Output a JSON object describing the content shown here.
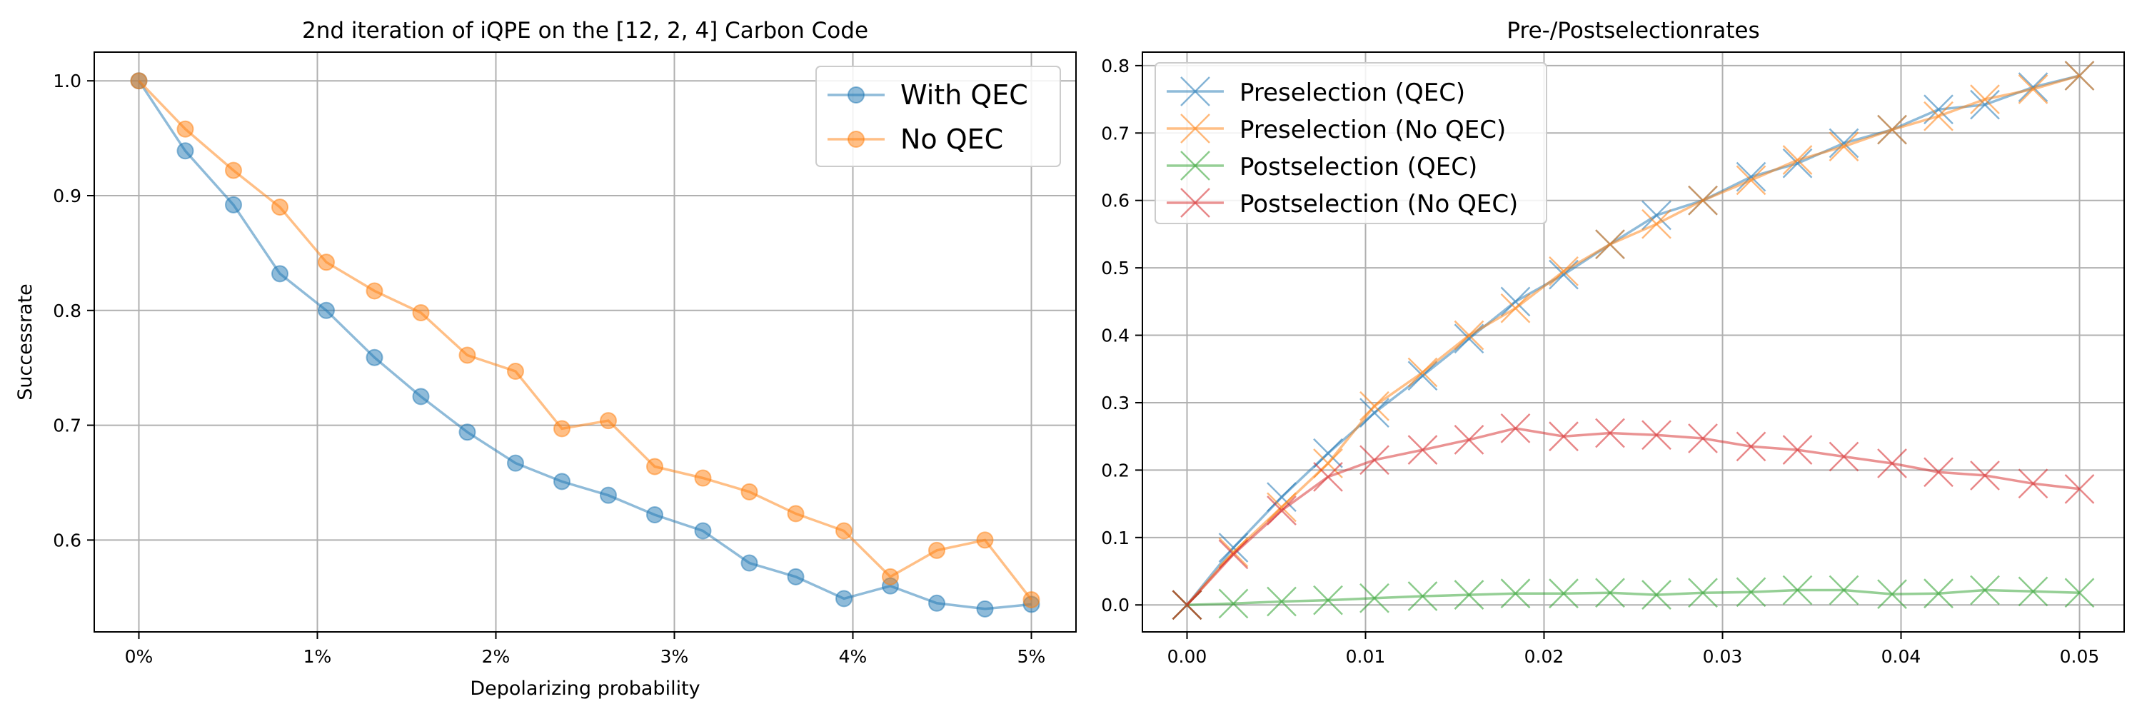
{
  "chart_data": [
    {
      "type": "line",
      "title": "2nd iteration of iQPE on the [12, 2, 4] Carbon Code",
      "xlabel": "Depolarizing probability",
      "ylabel": "Successrate",
      "xlim": [
        -0.0025,
        0.0525
      ],
      "ylim": [
        0.52,
        1.025
      ],
      "xticks": [
        0,
        0.01,
        0.02,
        0.03,
        0.04,
        0.05
      ],
      "xtick_labels": [
        "0%",
        "1%",
        "2%",
        "3%",
        "4%",
        "5%"
      ],
      "yticks": [
        0.6,
        0.7,
        0.8,
        0.9,
        1.0
      ],
      "ytick_labels": [
        "0.6",
        "0.7",
        "0.8",
        "0.9",
        "1.0"
      ],
      "grid": true,
      "legend_position": "top-right",
      "marker": "circle",
      "x": [
        0.0,
        0.0026,
        0.0053,
        0.0079,
        0.0105,
        0.0132,
        0.0158,
        0.0184,
        0.0211,
        0.0237,
        0.0263,
        0.0289,
        0.0316,
        0.0342,
        0.0368,
        0.0395,
        0.0421,
        0.0447,
        0.0474,
        0.05
      ],
      "series": [
        {
          "name": "With QEC",
          "color": "#1f77b4",
          "values": [
            1.0,
            0.939,
            0.892,
            0.832,
            0.8,
            0.759,
            0.725,
            0.694,
            0.667,
            0.651,
            0.639,
            0.622,
            0.608,
            0.58,
            0.568,
            0.549,
            0.56,
            0.545,
            0.54,
            0.544
          ]
        },
        {
          "name": "No QEC",
          "color": "#ff7f0e",
          "values": [
            1.0,
            0.958,
            0.922,
            0.89,
            0.842,
            0.817,
            0.798,
            0.761,
            0.747,
            0.697,
            0.704,
            0.664,
            0.654,
            0.642,
            0.623,
            0.608,
            0.568,
            0.591,
            0.6,
            0.548
          ]
        }
      ]
    },
    {
      "type": "line",
      "title": "Pre-/Postselectionrates",
      "xlabel": "",
      "ylabel": "",
      "xlim": [
        -0.0025,
        0.0525
      ],
      "ylim": [
        -0.04,
        0.82
      ],
      "xticks": [
        0,
        0.01,
        0.02,
        0.03,
        0.04,
        0.05
      ],
      "xtick_labels": [
        "0.00",
        "0.01",
        "0.02",
        "0.03",
        "0.04",
        "0.05"
      ],
      "yticks": [
        0,
        0.1,
        0.2,
        0.3,
        0.4,
        0.5,
        0.6,
        0.7,
        0.8
      ],
      "ytick_labels": [
        "0.0",
        "0.1",
        "0.2",
        "0.3",
        "0.4",
        "0.5",
        "0.6",
        "0.7",
        "0.8"
      ],
      "grid": true,
      "legend_position": "top-left",
      "marker": "x",
      "x": [
        0.0,
        0.0026,
        0.0053,
        0.0079,
        0.0105,
        0.0132,
        0.0158,
        0.0184,
        0.0211,
        0.0237,
        0.0263,
        0.0289,
        0.0316,
        0.0342,
        0.0368,
        0.0395,
        0.0421,
        0.0447,
        0.0474,
        0.05
      ],
      "series": [
        {
          "name": "Preselection (QEC)",
          "color": "#1f77b4",
          "values": [
            0.0,
            0.085,
            0.16,
            0.225,
            0.285,
            0.34,
            0.395,
            0.45,
            0.49,
            0.535,
            0.578,
            0.6,
            0.635,
            0.655,
            0.685,
            0.705,
            0.735,
            0.742,
            0.768,
            0.785
          ]
        },
        {
          "name": "Preselection (No QEC)",
          "color": "#ff7f0e",
          "values": [
            0.0,
            0.078,
            0.145,
            0.21,
            0.295,
            0.345,
            0.4,
            0.44,
            0.495,
            0.535,
            0.565,
            0.6,
            0.63,
            0.66,
            0.68,
            0.705,
            0.725,
            0.75,
            0.765,
            0.785
          ]
        },
        {
          "name": "Postselection (QEC)",
          "color": "#2ca02c",
          "values": [
            0.0,
            0.002,
            0.005,
            0.007,
            0.01,
            0.013,
            0.015,
            0.017,
            0.017,
            0.018,
            0.015,
            0.018,
            0.019,
            0.022,
            0.022,
            0.016,
            0.017,
            0.022,
            0.02,
            0.018
          ]
        },
        {
          "name": "Postselection (No QEC)",
          "color": "#d62728",
          "values": [
            0.0,
            0.075,
            0.14,
            0.19,
            0.215,
            0.23,
            0.245,
            0.262,
            0.25,
            0.255,
            0.252,
            0.247,
            0.235,
            0.23,
            0.22,
            0.21,
            0.197,
            0.192,
            0.18,
            0.172
          ]
        }
      ]
    }
  ]
}
